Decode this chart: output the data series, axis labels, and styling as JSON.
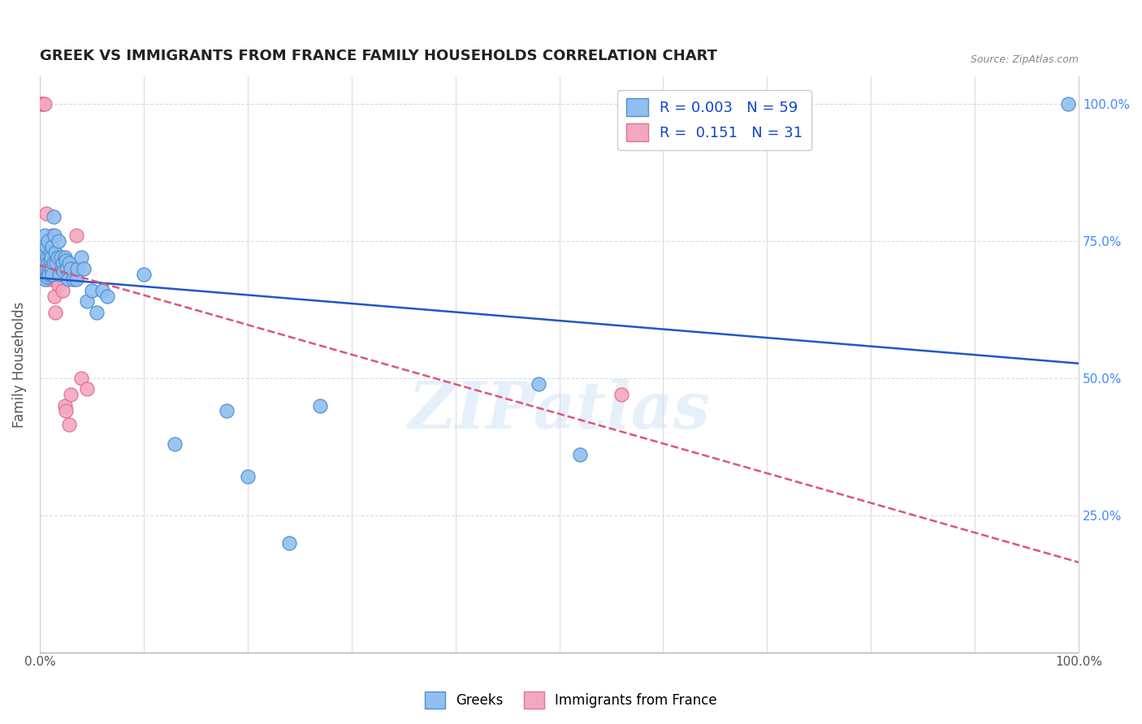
{
  "title": "GREEK VS IMMIGRANTS FROM FRANCE FAMILY HOUSEHOLDS CORRELATION CHART",
  "source": "Source: ZipAtlas.com",
  "ylabel": "Family Households",
  "watermark": "ZIPatlas",
  "greek_color": "#90bff0",
  "greek_edge": "#5090d0",
  "france_color": "#f4a8c0",
  "france_edge": "#e07090",
  "trend_greek_color": "#2255cc",
  "trend_france_color": "#dd5577",
  "grid_color": "#cccccc",
  "background_color": "#ffffff",
  "greek_scatter": [
    [
      0.001,
      0.71
    ],
    [
      0.002,
      0.705
    ],
    [
      0.003,
      0.72
    ],
    [
      0.003,
      0.695
    ],
    [
      0.004,
      0.73
    ],
    [
      0.004,
      0.71
    ],
    [
      0.005,
      0.76
    ],
    [
      0.005,
      0.68
    ],
    [
      0.006,
      0.74
    ],
    [
      0.006,
      0.7
    ],
    [
      0.007,
      0.72
    ],
    [
      0.007,
      0.685
    ],
    [
      0.008,
      0.75
    ],
    [
      0.008,
      0.71
    ],
    [
      0.009,
      0.7
    ],
    [
      0.009,
      0.69
    ],
    [
      0.01,
      0.73
    ],
    [
      0.01,
      0.715
    ],
    [
      0.011,
      0.72
    ],
    [
      0.011,
      0.7
    ],
    [
      0.012,
      0.74
    ],
    [
      0.012,
      0.69
    ],
    [
      0.013,
      0.795
    ],
    [
      0.013,
      0.71
    ],
    [
      0.014,
      0.76
    ],
    [
      0.015,
      0.73
    ],
    [
      0.016,
      0.71
    ],
    [
      0.017,
      0.72
    ],
    [
      0.018,
      0.75
    ],
    [
      0.019,
      0.69
    ],
    [
      0.02,
      0.72
    ],
    [
      0.021,
      0.7
    ],
    [
      0.022,
      0.71
    ],
    [
      0.023,
      0.695
    ],
    [
      0.024,
      0.72
    ],
    [
      0.025,
      0.715
    ],
    [
      0.026,
      0.7
    ],
    [
      0.027,
      0.68
    ],
    [
      0.028,
      0.71
    ],
    [
      0.03,
      0.7
    ],
    [
      0.032,
      0.68
    ],
    [
      0.035,
      0.68
    ],
    [
      0.036,
      0.7
    ],
    [
      0.04,
      0.72
    ],
    [
      0.042,
      0.7
    ],
    [
      0.045,
      0.64
    ],
    [
      0.05,
      0.66
    ],
    [
      0.055,
      0.62
    ],
    [
      0.06,
      0.66
    ],
    [
      0.065,
      0.65
    ],
    [
      0.1,
      0.69
    ],
    [
      0.13,
      0.38
    ],
    [
      0.18,
      0.44
    ],
    [
      0.2,
      0.32
    ],
    [
      0.24,
      0.2
    ],
    [
      0.27,
      0.45
    ],
    [
      0.48,
      0.49
    ],
    [
      0.52,
      0.36
    ],
    [
      0.99,
      1.0
    ]
  ],
  "france_scatter": [
    [
      0.001,
      1.0
    ],
    [
      0.002,
      1.0
    ],
    [
      0.003,
      1.0
    ],
    [
      0.005,
      1.0
    ],
    [
      0.006,
      0.8
    ],
    [
      0.007,
      0.72
    ],
    [
      0.007,
      0.68
    ],
    [
      0.008,
      0.73
    ],
    [
      0.009,
      0.69
    ],
    [
      0.01,
      0.72
    ],
    [
      0.01,
      0.7
    ],
    [
      0.011,
      0.74
    ],
    [
      0.011,
      0.68
    ],
    [
      0.012,
      0.76
    ],
    [
      0.012,
      0.72
    ],
    [
      0.013,
      0.7
    ],
    [
      0.014,
      0.65
    ],
    [
      0.015,
      0.62
    ],
    [
      0.016,
      0.68
    ],
    [
      0.017,
      0.7
    ],
    [
      0.018,
      0.67
    ],
    [
      0.02,
      0.71
    ],
    [
      0.022,
      0.66
    ],
    [
      0.024,
      0.45
    ],
    [
      0.025,
      0.44
    ],
    [
      0.028,
      0.415
    ],
    [
      0.03,
      0.47
    ],
    [
      0.035,
      0.76
    ],
    [
      0.04,
      0.5
    ],
    [
      0.045,
      0.48
    ],
    [
      0.56,
      0.47
    ]
  ],
  "greek_R": 0.003,
  "greek_N": 59,
  "france_R": 0.151,
  "france_N": 31,
  "xlim": [
    0.0,
    1.0
  ],
  "ylim": [
    0.0,
    1.05
  ]
}
